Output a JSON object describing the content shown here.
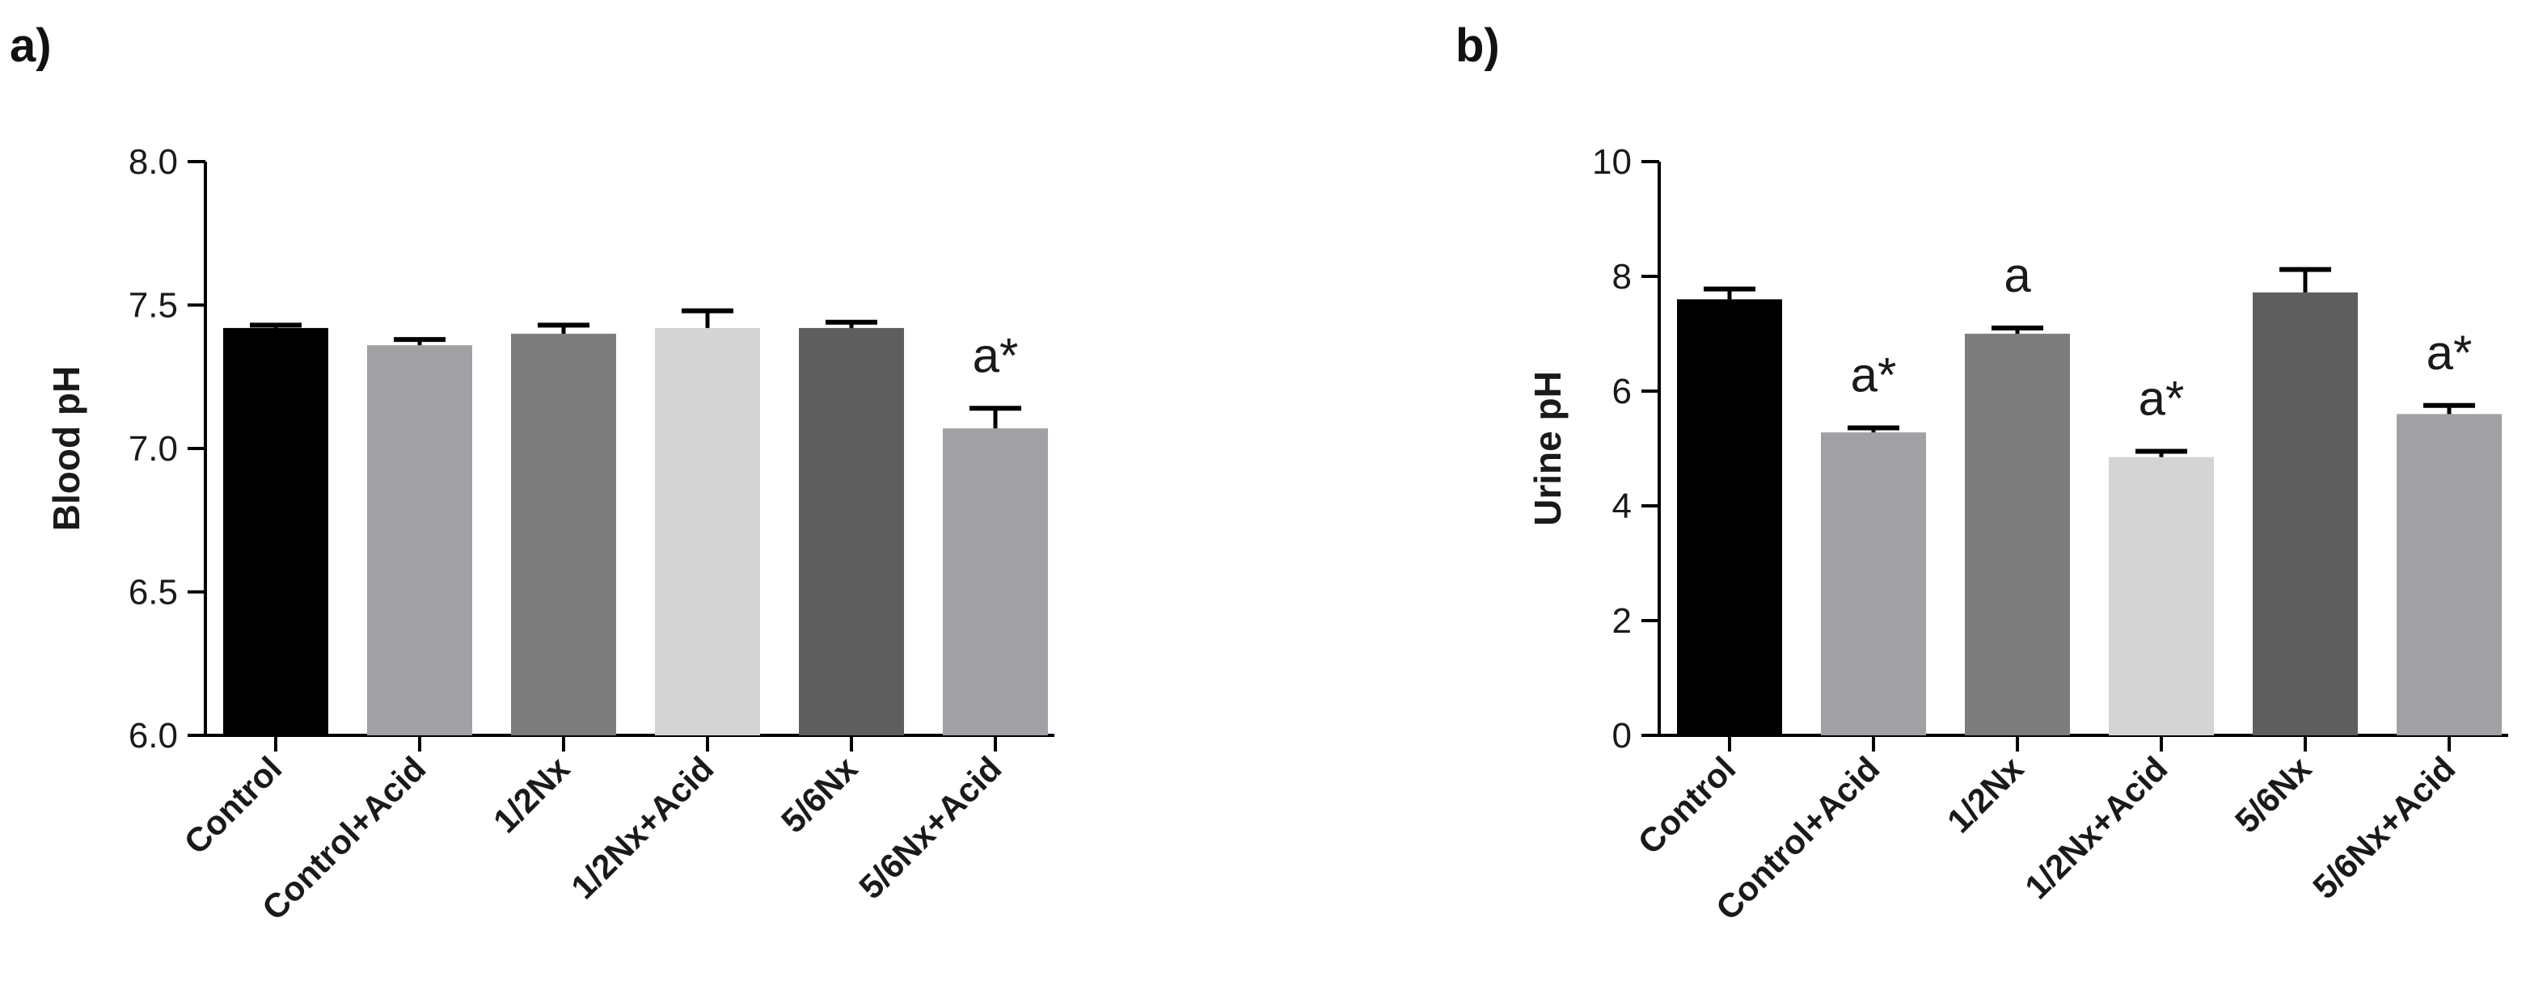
{
  "figure": {
    "panels": [
      "a)",
      "b)"
    ]
  },
  "chart_data": [
    {
      "type": "bar",
      "panel": "a)",
      "title": "",
      "xlabel": "",
      "ylabel": "Blood pH",
      "ylim": [
        6.0,
        8.0
      ],
      "yticks": [
        "6.0",
        "6.5",
        "7.0",
        "7.5",
        "8.0"
      ],
      "categories": [
        "Control",
        "Control+Acid",
        "1/2Nx",
        "1/2Nx+Acid",
        "5/6Nx",
        "5/6Nx+Acid"
      ],
      "values": [
        7.42,
        7.36,
        7.4,
        7.42,
        7.42,
        7.07
      ],
      "errors": [
        0.01,
        0.02,
        0.03,
        0.06,
        0.02,
        0.07
      ],
      "colors": [
        "#000000",
        "#a0a0a5",
        "#7d7d7d",
        "#d4d4d4",
        "#5e5e5e",
        "#a0a0a5"
      ],
      "annotations": [
        "",
        "",
        "",
        "",
        "",
        "a*"
      ],
      "grid": false
    },
    {
      "type": "bar",
      "panel": "b)",
      "title": "",
      "xlabel": "",
      "ylabel": "Urine pH",
      "ylim": [
        0,
        10
      ],
      "yticks": [
        "0",
        "2",
        "4",
        "6",
        "8",
        "10"
      ],
      "categories": [
        "Control",
        "Control+Acid",
        "1/2Nx",
        "1/2Nx+Acid",
        "5/6Nx",
        "5/6Nx+Acid"
      ],
      "values": [
        7.6,
        5.28,
        7.0,
        4.85,
        7.72,
        5.6
      ],
      "errors": [
        0.18,
        0.08,
        0.1,
        0.1,
        0.4,
        0.15
      ],
      "colors": [
        "#000000",
        "#a0a0a5",
        "#7d7d7d",
        "#d4d4d4",
        "#5e5e5e",
        "#a0a0a5"
      ],
      "annotations": [
        "",
        "a*",
        "a",
        "a*",
        "",
        "a*"
      ],
      "grid": false
    }
  ]
}
